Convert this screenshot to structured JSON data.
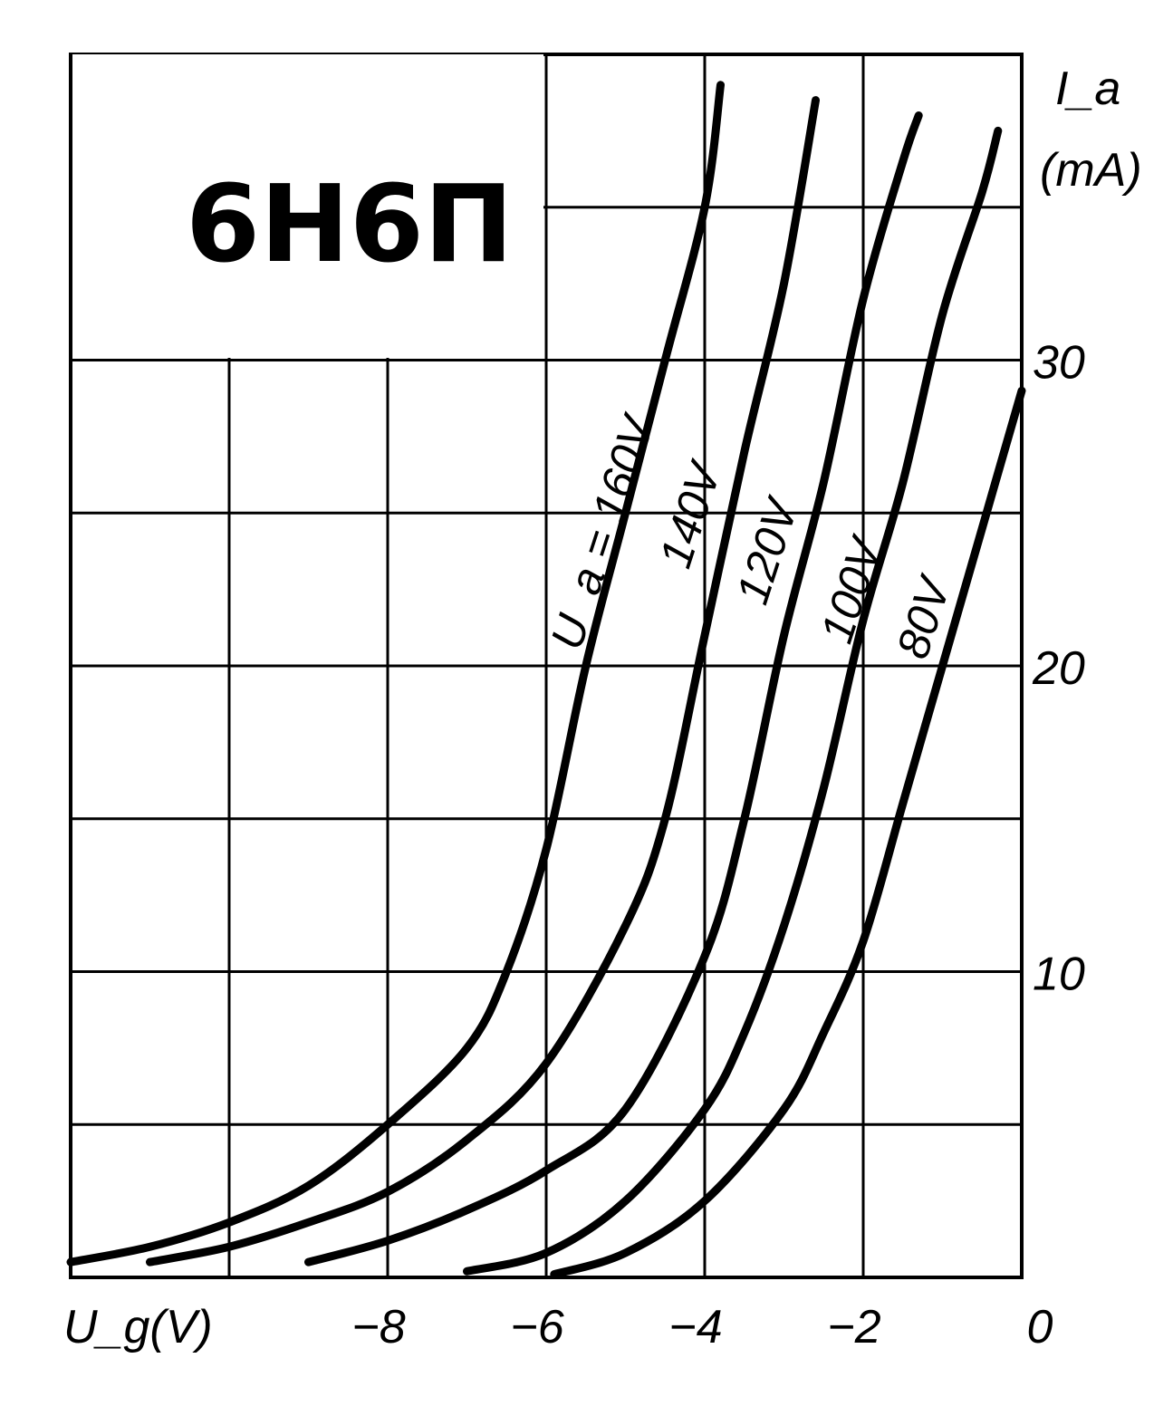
{
  "chart_data": {
    "type": "line",
    "title": "6Н6П",
    "xlabel": "U_g(V)",
    "ylabel": "I_a (mA)",
    "xlim": [
      -12,
      0
    ],
    "ylim": [
      0,
      40
    ],
    "x_ticks": [
      {
        "value": -8,
        "label": "−8"
      },
      {
        "value": -6,
        "label": "−6"
      },
      {
        "value": -4,
        "label": "−4"
      },
      {
        "value": -2,
        "label": "−2"
      },
      {
        "value": 0,
        "label": "0"
      }
    ],
    "y_ticks": [
      {
        "value": 10,
        "label": "10"
      },
      {
        "value": 20,
        "label": "20"
      },
      {
        "value": 30,
        "label": "30"
      }
    ],
    "grid": true,
    "series": [
      {
        "name": "U_a = 160V",
        "x": [
          -12,
          -11,
          -10,
          -9,
          -8,
          -7,
          -6.5,
          -6,
          -5.5,
          -5,
          -4.5,
          -4,
          -3.8
        ],
        "y": [
          0.5,
          1.0,
          1.8,
          3.0,
          5.0,
          7.5,
          10.0,
          14.0,
          20.0,
          25.0,
          30.0,
          35.0,
          39.0
        ]
      },
      {
        "name": "140V",
        "x": [
          -11,
          -10,
          -9,
          -8,
          -7,
          -6,
          -5,
          -4.5,
          -4,
          -3.5,
          -3,
          -2.6
        ],
        "y": [
          0.5,
          1.0,
          1.8,
          2.8,
          4.5,
          7.0,
          11.5,
          15.0,
          21.0,
          27.0,
          32.5,
          38.5
        ]
      },
      {
        "name": "120V",
        "x": [
          -9.0,
          -8,
          -7,
          -6,
          -5,
          -4,
          -3.5,
          -3,
          -2.5,
          -2,
          -1.5,
          -1.3
        ],
        "y": [
          0.5,
          1.2,
          2.2,
          3.5,
          5.5,
          10.5,
          15.0,
          21.0,
          26.0,
          32.0,
          36.5,
          38.0
        ]
      },
      {
        "name": "100V",
        "x": [
          -7.0,
          -6,
          -5,
          -4,
          -3.5,
          -3,
          -2.5,
          -2,
          -1.5,
          -1,
          -0.5,
          -0.3
        ],
        "y": [
          0.2,
          0.8,
          2.5,
          5.5,
          8.0,
          11.5,
          16.0,
          21.5,
          26.0,
          31.5,
          35.5,
          37.5
        ]
      },
      {
        "name": "80V",
        "x": [
          -5.9,
          -5,
          -4,
          -3,
          -2.5,
          -2,
          -1.5,
          -1,
          -0.5,
          0
        ],
        "y": [
          0.1,
          0.8,
          2.5,
          5.5,
          8.0,
          11.0,
          15.5,
          20.0,
          24.5,
          29.0
        ]
      }
    ]
  },
  "labels": {
    "title": "6Н6П",
    "x_axis": "U_g(V)",
    "y_axis_name": "I_a",
    "y_axis_unit": "(mA)",
    "series_labels": [
      "U_a = 160V",
      "140V",
      "120V",
      "100V",
      "80V"
    ]
  }
}
